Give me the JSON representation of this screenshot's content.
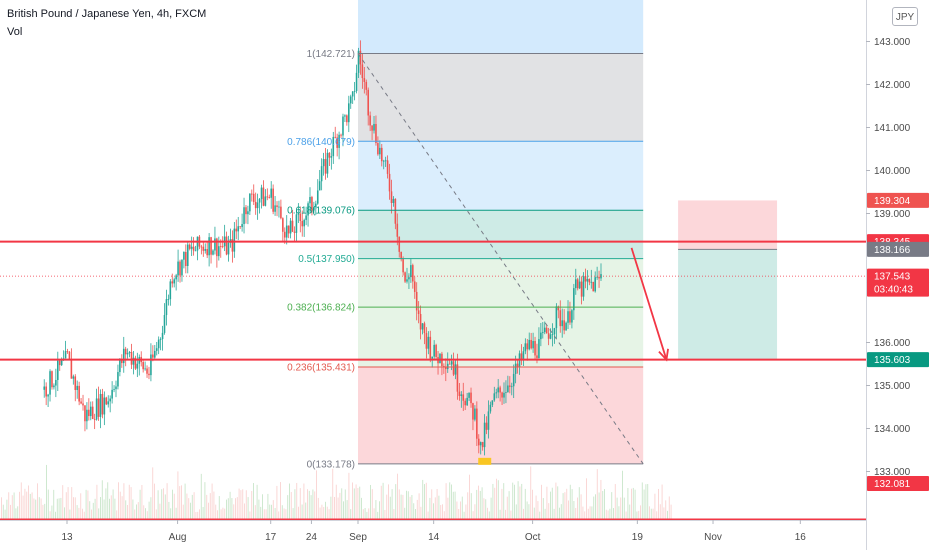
{
  "header": {
    "title": "British Pound / Japanese Yen, 4h, FXCM",
    "indicator": "Vol",
    "currency_button": "JPY"
  },
  "chart_data": {
    "type": "candlestick",
    "symbol": "British Pound / Japanese Yen",
    "interval": "4h",
    "source": "FXCM",
    "ylim": [
      132.72,
      143.25
    ],
    "x_ticks": [
      "13",
      "Aug",
      "17",
      "24",
      "Sep",
      "14",
      "Oct",
      "19",
      "Nov",
      "16"
    ],
    "y_ticks": [
      "143.000",
      "142.000",
      "141.000",
      "140.000",
      "139.000",
      "136.000",
      "135.000",
      "134.000",
      "133.000"
    ],
    "price_path": [
      {
        "t": "2020-07-09",
        "p": 134.9
      },
      {
        "t": "2020-07-13",
        "p": 135.6
      },
      {
        "t": "2020-07-16",
        "p": 134.3
      },
      {
        "t": "2020-07-20",
        "p": 134.7
      },
      {
        "t": "2020-07-23",
        "p": 135.8
      },
      {
        "t": "2020-07-27",
        "p": 135.3
      },
      {
        "t": "2020-07-29",
        "p": 136.2
      },
      {
        "t": "2020-07-31",
        "p": 137.6
      },
      {
        "t": "2020-08-03",
        "p": 138.1
      },
      {
        "t": "2020-08-06",
        "p": 138.3
      },
      {
        "t": "2020-08-10",
        "p": 138.2
      },
      {
        "t": "2020-08-13",
        "p": 139.3
      },
      {
        "t": "2020-08-17",
        "p": 139.4
      },
      {
        "t": "2020-08-20",
        "p": 138.5
      },
      {
        "t": "2020-08-24",
        "p": 139.2
      },
      {
        "t": "2020-08-27",
        "p": 140.4
      },
      {
        "t": "2020-08-31",
        "p": 141.6
      },
      {
        "t": "2020-09-01",
        "p": 142.7
      },
      {
        "t": "2020-09-03",
        "p": 141.3
      },
      {
        "t": "2020-09-07",
        "p": 139.3
      },
      {
        "t": "2020-09-09",
        "p": 137.3
      },
      {
        "t": "2020-09-10",
        "p": 137.8
      },
      {
        "t": "2020-09-11",
        "p": 136.6
      },
      {
        "t": "2020-09-14",
        "p": 135.7
      },
      {
        "t": "2020-09-17",
        "p": 135.6
      },
      {
        "t": "2020-09-18",
        "p": 135.1
      },
      {
        "t": "2020-09-21",
        "p": 134.3
      },
      {
        "t": "2020-09-22",
        "p": 133.5
      },
      {
        "t": "2020-09-24",
        "p": 134.6
      },
      {
        "t": "2020-09-28",
        "p": 135.3
      },
      {
        "t": "2020-09-30",
        "p": 135.9
      },
      {
        "t": "2020-10-02",
        "p": 135.9
      },
      {
        "t": "2020-10-05",
        "p": 136.6
      },
      {
        "t": "2020-10-07",
        "p": 136.5
      },
      {
        "t": "2020-10-08",
        "p": 137.2
      },
      {
        "t": "2020-10-12",
        "p": 137.4
      },
      {
        "t": "2020-10-13",
        "p": 137.6
      }
    ],
    "horizontal_levels": [
      138.345,
      135.603
    ],
    "fibonacci_retracement": {
      "from": {
        "t": "2020-09-01",
        "p": 142.721
      },
      "to": {
        "t": "2020-10-20",
        "p": 133.178
      },
      "levels": [
        {
          "label": "1(142.721)",
          "ratio": 1,
          "price": 142.721,
          "color": "#787b86"
        },
        {
          "label": "0.786(140.679)",
          "ratio": 0.786,
          "price": 140.679,
          "color": "#4ba0e8"
        },
        {
          "label": "0.618(139.076)",
          "ratio": 0.618,
          "price": 139.076,
          "color": "#089981"
        },
        {
          "label": "0.5(137.950)",
          "ratio": 0.5,
          "price": 137.95,
          "color": "#22ab94"
        },
        {
          "label": "0.382(136.824)",
          "ratio": 0.382,
          "price": 136.824,
          "color": "#4caf50"
        },
        {
          "label": "0.236(135.431)",
          "ratio": 0.236,
          "price": 135.431,
          "color": "#e35a50"
        },
        {
          "label": "0(133.178)",
          "ratio": 0,
          "price": 133.178,
          "color": "#787b86"
        }
      ]
    },
    "position_tool": {
      "start": "2020-10-26",
      "end": "2020-11-12",
      "entry": 138.166,
      "stop": 139.304,
      "target": 135.603
    },
    "arrow": {
      "from": {
        "t": "2020-10-18",
        "p": 138.2
      },
      "to": {
        "t": "2020-10-24",
        "p": 135.6
      }
    },
    "price_tags": [
      {
        "label": "139.304",
        "value": 139.304,
        "color": "#ef5350"
      },
      {
        "label": "138.345",
        "value": 138.345,
        "color": "#f23645"
      },
      {
        "label": "138.166",
        "value": 138.166,
        "color": "#787b86"
      },
      {
        "label": "137.543",
        "value": 137.543,
        "color": "#f23645"
      },
      {
        "label": "03:40:43",
        "value": 137.24,
        "color": "#f23645"
      },
      {
        "label": "135.603",
        "value": 135.603,
        "color": "#089981"
      },
      {
        "label": "132.081",
        "value": 132.72,
        "color": "#f23645"
      }
    ]
  }
}
